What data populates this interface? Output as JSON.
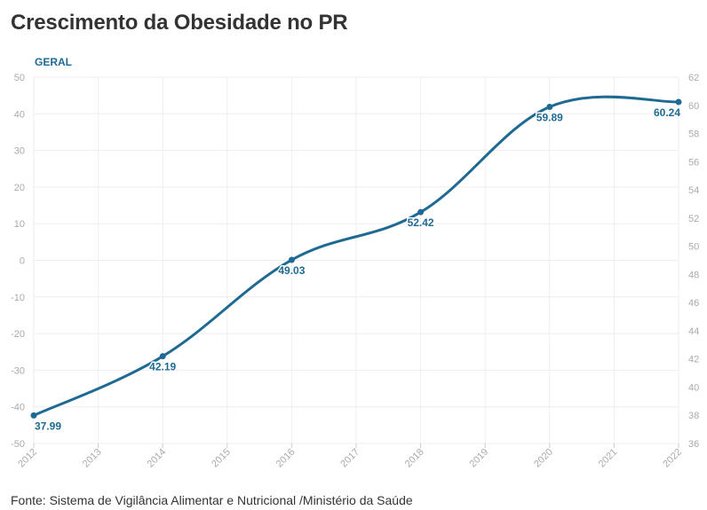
{
  "title": "Crescimento da Obesidade no PR",
  "footer": "Fonte: Sistema de Vigilância Alimentar e Nutricional /Ministério da Saúde",
  "colors": {
    "line": "#1f6a93",
    "grid": "#eeeeee",
    "title": "#333333",
    "tick": "#aaaaaa"
  },
  "chart_data": {
    "type": "line",
    "title": "Crescimento da Obesidade no PR",
    "series": [
      {
        "name": "GERAL",
        "x": [
          2012,
          2014,
          2016,
          2018,
          2020,
          2022
        ],
        "values": [
          37.99,
          42.19,
          49.03,
          52.42,
          59.89,
          60.24
        ],
        "labels": [
          "37.99",
          "42.19",
          "49.03",
          "52.42",
          "59.89",
          "60.24"
        ]
      }
    ],
    "x_ticks": [
      "2012",
      "2013",
      "2014",
      "2015",
      "2016",
      "2017",
      "2018",
      "2019",
      "2020",
      "2021",
      "2022"
    ],
    "xlim": [
      2012,
      2022
    ],
    "y_left_ticks": [
      "50",
      "40",
      "30",
      "20",
      "10",
      "0",
      "-10",
      "-20",
      "-30",
      "-40",
      "-50"
    ],
    "y_left_lim": [
      -50,
      50
    ],
    "y_right_ticks": [
      "62",
      "60",
      "58",
      "56",
      "54",
      "52",
      "50",
      "48",
      "46",
      "44",
      "42",
      "40",
      "38",
      "36"
    ],
    "y_right_lim": [
      36,
      62
    ],
    "grid": true,
    "legend": "top-left"
  }
}
